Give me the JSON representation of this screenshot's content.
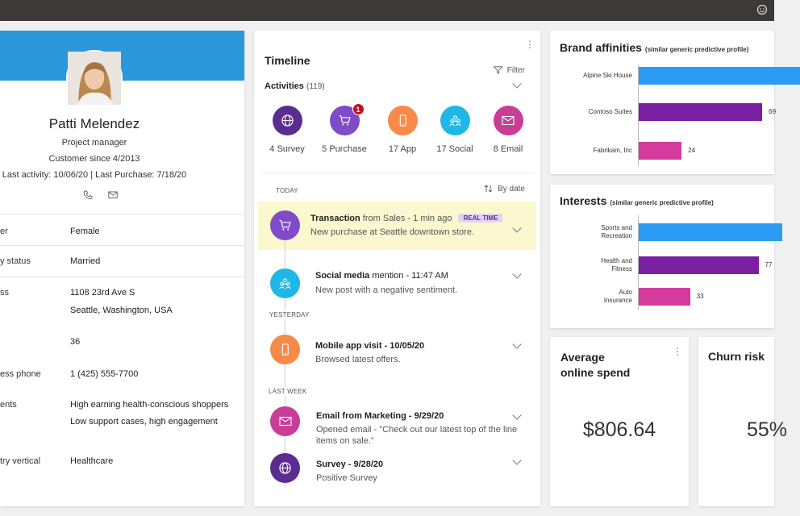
{
  "colors": {
    "banner": "#2b98dc",
    "purple_dark": "#5c2d91",
    "purple_light": "#7f4bc8",
    "orange": "#f7894a",
    "cyan": "#1fb8e6",
    "magenta": "#c83e97",
    "bar_blue": "#2b9bf4",
    "bar_purple": "#7b1fa2",
    "bar_pink": "#d63a9c"
  },
  "profile": {
    "name": "Patti Melendez",
    "role": "Project manager",
    "customer_since": "Customer since 4/2013",
    "last_activity": "Last activity: 10/06/20 | Last Purchase: 7/18/20",
    "icons": [
      "phone-icon",
      "mail-icon"
    ],
    "fields": [
      {
        "label": "er",
        "value": "Female"
      },
      {
        "label": "y status",
        "value": "Married"
      },
      {
        "label": "ss",
        "value": "1108 23rd Ave S",
        "value2": "Seattle, Washington, USA"
      },
      {
        "label": "",
        "value": "36"
      },
      {
        "label": "ess phone",
        "value": "1 (425) 555-7700"
      },
      {
        "label": "ents",
        "value": "High earning health-conscious shoppers",
        "value2": "Low support cases, high engagement"
      },
      {
        "label": "try vertical",
        "value": "Healthcare"
      }
    ]
  },
  "timeline": {
    "title": "Timeline",
    "filter_label": "Filter",
    "activities_label": "Activities",
    "activities_count": "(119)",
    "activity_types": [
      {
        "label": "4 Survey",
        "icon": "globe-icon",
        "color": "#5c2d91"
      },
      {
        "label": "5 Purchase",
        "icon": "cart-icon",
        "color": "#7f4bc8",
        "badge": "1"
      },
      {
        "label": "17 App",
        "icon": "phone-app-icon",
        "color": "#f7894a"
      },
      {
        "label": "17 Social",
        "icon": "social-icon",
        "color": "#1fb8e6"
      },
      {
        "label": "8 Email",
        "icon": "mail-icon",
        "color": "#c83e97"
      }
    ],
    "today_label": "TODAY",
    "sort_label": "By date",
    "yesterday_label": "YESTERDAY",
    "lastweek_label": "LAST WEEK",
    "events": [
      {
        "title_bold": "Transaction",
        "title_rest": " from Sales - 1 min ago",
        "tag": "REAL TIME",
        "subtitle": "New purchase at Seattle downtown store."
      },
      {
        "title_bold": "Social media",
        "title_rest": " mention - 11:47 AM",
        "subtitle": "New post with a negative sentiment."
      },
      {
        "title_bold": "Mobile app visit - 10/05/20",
        "title_rest": "",
        "subtitle": "Browsed latest offers."
      },
      {
        "title_bold": "Email from Marketing - 9/29/20",
        "title_rest": "",
        "subtitle": "Opened email - \"Check out our latest top of the line",
        "subtitle2": "items on sale.\""
      },
      {
        "title_bold": "Survey - 9/28/20",
        "title_rest": "",
        "subtitle": "Positive Survey"
      }
    ]
  },
  "brand_affinities": {
    "title": "Brand affinities",
    "subtitle": "(similar generic predictive profile)"
  },
  "interests": {
    "title": "Interests",
    "subtitle": "(similar generic predictive profile)"
  },
  "chart_data": [
    {
      "type": "bar",
      "orientation": "horizontal",
      "title": "Brand affinities",
      "categories": [
        "Alpine Ski House",
        "Contoso Suites",
        "Fabrikam, Inc"
      ],
      "values": [
        90,
        69,
        24
      ],
      "data_labels": [
        "",
        "69",
        "24"
      ],
      "colors": [
        "#2b9bf4",
        "#7b1fa2",
        "#d63a9c"
      ],
      "xlim": [
        0,
        100
      ]
    },
    {
      "type": "bar",
      "orientation": "horizontal",
      "title": "Interests",
      "categories": [
        "Sports and Recreation",
        "Health and Fitness",
        "Auto Insurance"
      ],
      "category_lines": [
        [
          "Sports and",
          "Recreation"
        ],
        [
          "Health and",
          "Fitness"
        ],
        [
          "Auto",
          "Insurance"
        ]
      ],
      "values": [
        92,
        77,
        33
      ],
      "data_labels": [
        "",
        "77",
        "33"
      ],
      "colors": [
        "#2b9bf4",
        "#7b1fa2",
        "#d63a9c"
      ],
      "xlim": [
        0,
        100
      ]
    }
  ],
  "spend": {
    "title_line1": "Average",
    "title_line2": "online spend",
    "value": "$806.64"
  },
  "churn": {
    "title": "Churn risk",
    "value": "55%"
  }
}
